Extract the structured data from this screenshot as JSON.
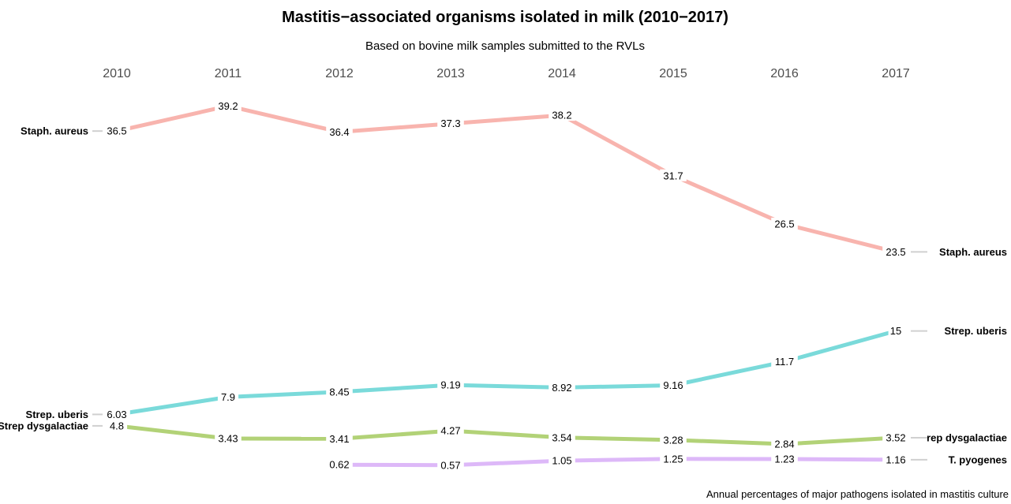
{
  "chart_data": {
    "type": "line",
    "title": "Mastitis−associated organisms isolated in milk (2010−2017)",
    "subtitle": "Based on bovine milk samples submitted to the RVLs",
    "caption": "Annual percentages of major pathogens isolated in mastitis culture",
    "x": [
      "2010",
      "2011",
      "2012",
      "2013",
      "2014",
      "2015",
      "2016",
      "2017"
    ],
    "ylim": [
      0,
      40
    ],
    "grid": false,
    "legend": "none",
    "series": [
      {
        "name": "Staph. aureus",
        "color": "#F8B4AE",
        "values": [
          36.5,
          39.2,
          36.4,
          37.3,
          38.2,
          31.7,
          26.5,
          23.5
        ],
        "labels": [
          "36.5",
          "39.2",
          "36.4",
          "37.3",
          "38.2",
          "31.7",
          "26.5",
          "23.5"
        ],
        "left_label": "Staph. aureus",
        "right_label": "Staph. aureus"
      },
      {
        "name": "Strep. uberis",
        "color": "#7ADADA",
        "values": [
          6.03,
          7.9,
          8.45,
          9.19,
          8.92,
          9.16,
          11.7,
          15
        ],
        "labels": [
          "6.03",
          "7.9",
          "8.45",
          "9.19",
          "8.92",
          "9.16",
          "11.7",
          "15"
        ],
        "left_label": "Strep. uberis",
        "right_label": "Strep. uberis"
      },
      {
        "name": "Strep dysgalactiae",
        "color": "#B2D277",
        "values": [
          4.8,
          3.43,
          3.41,
          4.27,
          3.54,
          3.28,
          2.84,
          3.52
        ],
        "labels": [
          "4.8",
          "3.43",
          "3.41",
          "4.27",
          "3.54",
          "3.28",
          "2.84",
          "3.52"
        ],
        "left_label": "Strep dysgalactiae",
        "right_label": "rep dysgalactiae"
      },
      {
        "name": "T. pyogenes",
        "color": "#DDB8F8",
        "values": [
          null,
          null,
          0.62,
          0.57,
          1.05,
          1.25,
          1.23,
          1.16
        ],
        "labels": [
          "",
          "",
          "0.62",
          "0.57",
          "1.05",
          "1.25",
          "1.23",
          "1.16"
        ],
        "left_label": "",
        "right_label": "T. pyogenes"
      }
    ]
  }
}
